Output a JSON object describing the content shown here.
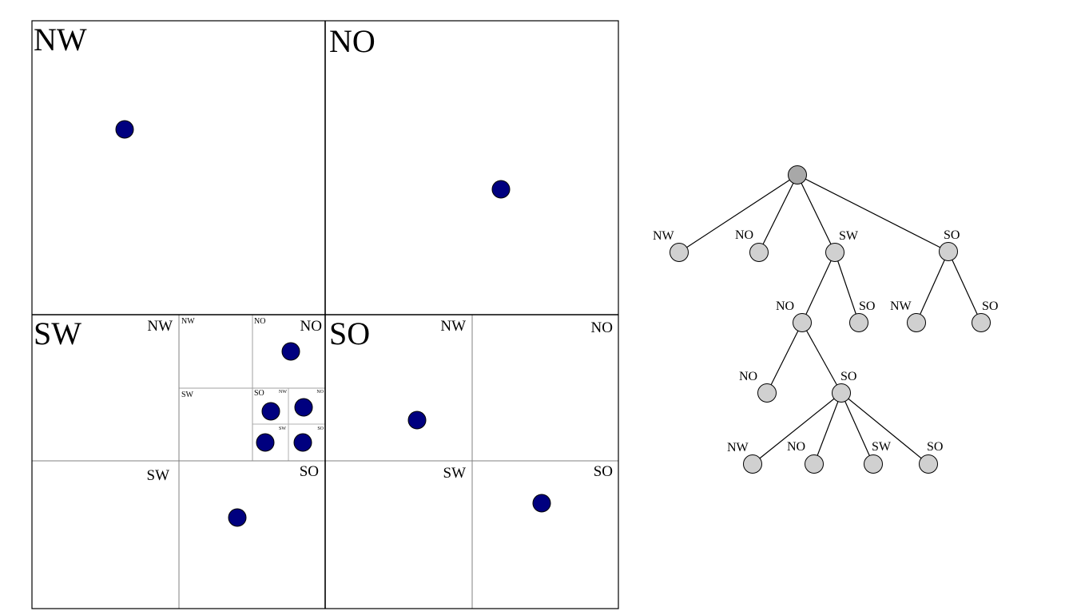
{
  "colors": {
    "point": "#00007f",
    "node": "#d0d0d0",
    "root_node": "#a8a8a8",
    "outline": "#000000",
    "subgrid": "#808080",
    "fine_grid": "#b0b0b0",
    "background": "#ffffff"
  },
  "quadtree": {
    "labels": {
      "nw": "NW",
      "no": "NO",
      "sw": "SW",
      "so": "SO",
      "sw_nw": "NW",
      "sw_sw": "SW",
      "sw_so": "SO",
      "sw_no_nw": "NW",
      "sw_no_no": "NO",
      "sw_no_sw": "SW",
      "sw_no_so": "SO",
      "sw_no_so_nw": "NW",
      "sw_no_so_no": "NO",
      "sw_no_so_sw": "SW",
      "sw_no_so_so": "SO",
      "so_nw": "NW",
      "so_no": "NO",
      "so_sw": "SW",
      "so_so": "SO"
    },
    "point_count": 10
  },
  "tree": {
    "labels": {
      "l1_nw": "NW",
      "l1_no": "NO",
      "l1_sw": "SW",
      "l1_so": "SO",
      "l2_sw_no": "NO",
      "l2_sw_so": "SO",
      "l2_so_nw": "NW",
      "l2_so_so": "SO",
      "l3_no": "NO",
      "l3_so": "SO",
      "l4_nw": "NW",
      "l4_no": "NO",
      "l4_sw": "SW",
      "l4_so": "SO"
    }
  }
}
